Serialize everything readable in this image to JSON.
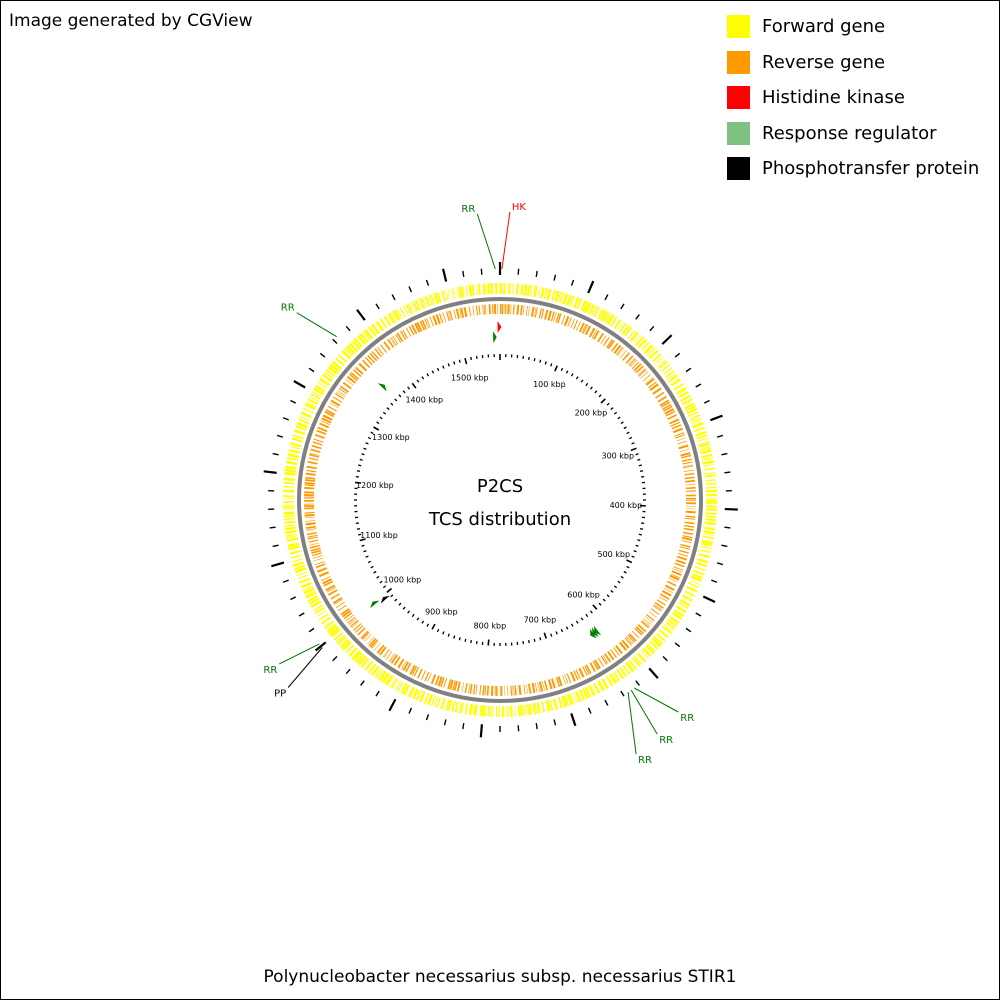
{
  "credit": "Image generated by CGView",
  "legend": [
    {
      "label": "Forward gene",
      "color": "#ffff00",
      "icon": "legend-swatch"
    },
    {
      "label": "Reverse gene",
      "color": "#ff9900",
      "icon": "legend-swatch"
    },
    {
      "label": "Histidine kinase",
      "color": "#ff0000",
      "icon": "legend-swatch"
    },
    {
      "label": "Response regulator",
      "color": "#80c080",
      "icon": "legend-swatch"
    },
    {
      "label": "Phosphotransfer protein",
      "color": "#000000",
      "icon": "legend-swatch"
    }
  ],
  "map": {
    "title_line1": "P2CS",
    "title_line2": "TCS distribution",
    "genome_size_kbp": 1560,
    "tick_labels": [
      "100 kbp",
      "200 kbp",
      "300 kbp",
      "400 kbp",
      "500 kbp",
      "600 kbp",
      "700 kbp",
      "800 kbp",
      "900 kbp",
      "1000 kbp",
      "1100 kbp",
      "1200 kbp",
      "1300 kbp",
      "1400 kbp",
      "1500 kbp"
    ],
    "tick_positions_kbp": [
      100,
      200,
      300,
      400,
      500,
      600,
      700,
      800,
      900,
      1000,
      1100,
      1200,
      1300,
      1400,
      1500
    ],
    "forward_color": "#ffff00",
    "reverse_color": "#ff9900",
    "backbone_color": "#808080"
  },
  "callouts": [
    {
      "label": "RR",
      "type": "Response regulator",
      "position_kbp": 1555,
      "color": "#007700"
    },
    {
      "label": "HK",
      "type": "Histidine kinase",
      "position_kbp": 2,
      "color": "#ff0000"
    },
    {
      "label": "RR",
      "type": "Response regulator",
      "position_kbp": 1365,
      "color": "#007700"
    },
    {
      "label": "RR",
      "type": "Response regulator",
      "position_kbp": 1003,
      "color": "#007700"
    },
    {
      "label": "PP",
      "type": "Phosphotransfer protein",
      "position_kbp": 998,
      "color": "#000000"
    },
    {
      "label": "RR",
      "type": "Response regulator",
      "position_kbp": 626,
      "color": "#007700"
    },
    {
      "label": "RR",
      "type": "Response regulator",
      "position_kbp": 630,
      "color": "#007700"
    },
    {
      "label": "RR",
      "type": "Response regulator",
      "position_kbp": 634,
      "color": "#007700"
    }
  ],
  "caption": "Polynucleobacter necessarius subsp. necessarius STIR1"
}
